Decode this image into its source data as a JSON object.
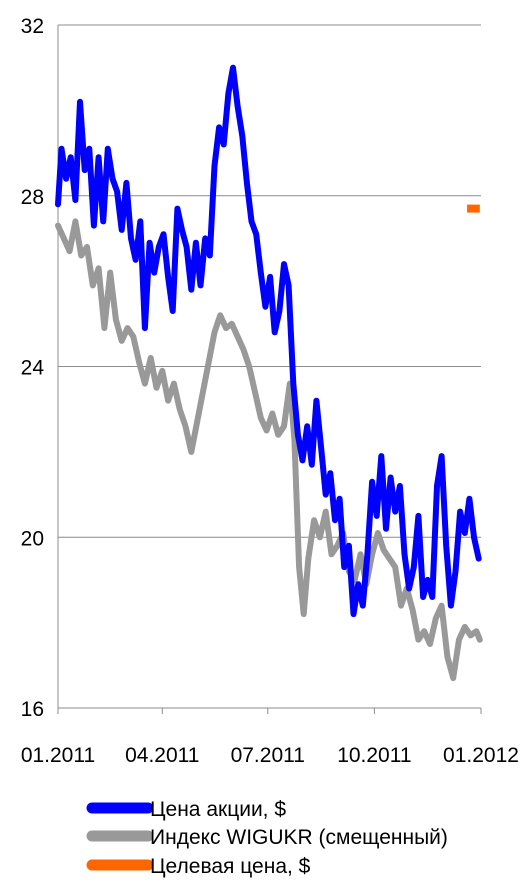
{
  "chart_data": {
    "type": "line",
    "title": "",
    "xlabel": "",
    "ylabel": "",
    "ylim": [
      16,
      32
    ],
    "yticks": [
      "16",
      "20",
      "24",
      "28",
      "32"
    ],
    "xlim": [
      "2011-01-01",
      "2012-01-01"
    ],
    "xticks": [
      "01.2011",
      "04.2011",
      "07.2011",
      "10.2011",
      "01.2012"
    ],
    "grid": "horizontal",
    "legend": "bottom",
    "series": [
      {
        "name": "Цена акции, $",
        "color": "#0000ff",
        "points": [
          [
            "2011-01-01",
            27.8
          ],
          [
            "2011-01-04",
            29.1
          ],
          [
            "2011-01-08",
            28.4
          ],
          [
            "2011-01-12",
            28.9
          ],
          [
            "2011-01-16",
            27.9
          ],
          [
            "2011-01-20",
            30.2
          ],
          [
            "2011-01-24",
            28.6
          ],
          [
            "2011-01-28",
            29.1
          ],
          [
            "2011-02-01",
            27.3
          ],
          [
            "2011-02-05",
            28.9
          ],
          [
            "2011-02-09",
            27.4
          ],
          [
            "2011-02-13",
            29.1
          ],
          [
            "2011-02-17",
            28.4
          ],
          [
            "2011-02-21",
            28.1
          ],
          [
            "2011-02-25",
            27.2
          ],
          [
            "2011-03-01",
            28.3
          ],
          [
            "2011-03-05",
            27.0
          ],
          [
            "2011-03-09",
            26.5
          ],
          [
            "2011-03-13",
            27.4
          ],
          [
            "2011-03-17",
            24.9
          ],
          [
            "2011-03-21",
            26.9
          ],
          [
            "2011-03-25",
            26.2
          ],
          [
            "2011-03-29",
            26.8
          ],
          [
            "2011-04-02",
            27.1
          ],
          [
            "2011-04-06",
            26.1
          ],
          [
            "2011-04-10",
            25.3
          ],
          [
            "2011-04-14",
            27.7
          ],
          [
            "2011-04-18",
            27.2
          ],
          [
            "2011-04-22",
            26.8
          ],
          [
            "2011-04-26",
            25.8
          ],
          [
            "2011-04-30",
            26.9
          ],
          [
            "2011-05-04",
            25.9
          ],
          [
            "2011-05-08",
            27.0
          ],
          [
            "2011-05-12",
            26.6
          ],
          [
            "2011-05-16",
            28.7
          ],
          [
            "2011-05-20",
            29.6
          ],
          [
            "2011-05-24",
            29.2
          ],
          [
            "2011-05-28",
            30.4
          ],
          [
            "2011-06-01",
            31.0
          ],
          [
            "2011-06-05",
            30.1
          ],
          [
            "2011-06-09",
            29.4
          ],
          [
            "2011-06-13",
            28.3
          ],
          [
            "2011-06-17",
            27.4
          ],
          [
            "2011-06-21",
            27.1
          ],
          [
            "2011-06-25",
            26.2
          ],
          [
            "2011-06-29",
            25.4
          ],
          [
            "2011-07-03",
            26.1
          ],
          [
            "2011-07-07",
            24.8
          ],
          [
            "2011-07-11",
            25.3
          ],
          [
            "2011-07-15",
            26.4
          ],
          [
            "2011-07-19",
            25.9
          ],
          [
            "2011-07-23",
            23.6
          ],
          [
            "2011-07-27",
            22.4
          ],
          [
            "2011-07-31",
            21.8
          ],
          [
            "2011-08-04",
            22.6
          ],
          [
            "2011-08-08",
            21.7
          ],
          [
            "2011-08-12",
            23.2
          ],
          [
            "2011-08-16",
            22.1
          ],
          [
            "2011-08-20",
            21.0
          ],
          [
            "2011-08-24",
            21.5
          ],
          [
            "2011-08-28",
            20.4
          ],
          [
            "2011-09-01",
            20.9
          ],
          [
            "2011-09-05",
            19.3
          ],
          [
            "2011-09-09",
            19.8
          ],
          [
            "2011-09-13",
            18.2
          ],
          [
            "2011-09-17",
            18.9
          ],
          [
            "2011-09-21",
            18.4
          ],
          [
            "2011-09-25",
            19.6
          ],
          [
            "2011-09-29",
            21.3
          ],
          [
            "2011-10-03",
            20.5
          ],
          [
            "2011-10-07",
            21.9
          ],
          [
            "2011-10-11",
            20.2
          ],
          [
            "2011-10-15",
            21.4
          ],
          [
            "2011-10-19",
            20.6
          ],
          [
            "2011-10-23",
            21.2
          ],
          [
            "2011-10-27",
            19.6
          ],
          [
            "2011-10-31",
            18.8
          ],
          [
            "2011-11-04",
            19.3
          ],
          [
            "2011-11-08",
            20.5
          ],
          [
            "2011-11-12",
            18.6
          ],
          [
            "2011-11-16",
            19.0
          ],
          [
            "2011-11-20",
            18.6
          ],
          [
            "2011-11-24",
            21.2
          ],
          [
            "2011-11-28",
            21.9
          ],
          [
            "2011-12-02",
            19.8
          ],
          [
            "2011-12-06",
            18.4
          ],
          [
            "2011-12-10",
            19.2
          ],
          [
            "2011-12-14",
            20.6
          ],
          [
            "2011-12-18",
            20.1
          ],
          [
            "2011-12-22",
            20.9
          ],
          [
            "2011-12-26",
            20.0
          ],
          [
            "2011-12-30",
            19.5
          ]
        ]
      },
      {
        "name": "Индекс WIGUKR (смещенный)",
        "color": "#999999",
        "points": [
          [
            "2011-01-01",
            27.3
          ],
          [
            "2011-01-06",
            27.0
          ],
          [
            "2011-01-11",
            26.7
          ],
          [
            "2011-01-16",
            27.4
          ],
          [
            "2011-01-21",
            26.6
          ],
          [
            "2011-01-26",
            26.8
          ],
          [
            "2011-01-31",
            25.9
          ],
          [
            "2011-02-05",
            26.3
          ],
          [
            "2011-02-10",
            24.9
          ],
          [
            "2011-02-15",
            26.2
          ],
          [
            "2011-02-20",
            25.1
          ],
          [
            "2011-02-25",
            24.6
          ],
          [
            "2011-03-02",
            24.9
          ],
          [
            "2011-03-07",
            24.7
          ],
          [
            "2011-03-12",
            24.1
          ],
          [
            "2011-03-17",
            23.6
          ],
          [
            "2011-03-22",
            24.2
          ],
          [
            "2011-03-27",
            23.5
          ],
          [
            "2011-04-01",
            23.9
          ],
          [
            "2011-04-06",
            23.2
          ],
          [
            "2011-04-11",
            23.6
          ],
          [
            "2011-04-16",
            23.0
          ],
          [
            "2011-04-21",
            22.6
          ],
          [
            "2011-04-26",
            22.0
          ],
          [
            "2011-05-01",
            22.7
          ],
          [
            "2011-05-06",
            23.4
          ],
          [
            "2011-05-11",
            24.1
          ],
          [
            "2011-05-16",
            24.8
          ],
          [
            "2011-05-21",
            25.2
          ],
          [
            "2011-05-26",
            24.9
          ],
          [
            "2011-05-31",
            25.0
          ],
          [
            "2011-06-05",
            24.7
          ],
          [
            "2011-06-10",
            24.4
          ],
          [
            "2011-06-15",
            24.0
          ],
          [
            "2011-06-20",
            23.4
          ],
          [
            "2011-06-25",
            22.8
          ],
          [
            "2011-06-30",
            22.5
          ],
          [
            "2011-07-05",
            22.9
          ],
          [
            "2011-07-10",
            22.4
          ],
          [
            "2011-07-15",
            22.6
          ],
          [
            "2011-07-20",
            23.6
          ],
          [
            "2011-07-24",
            22.3
          ],
          [
            "2011-07-28",
            19.3
          ],
          [
            "2011-08-01",
            18.2
          ],
          [
            "2011-08-05",
            19.5
          ],
          [
            "2011-08-10",
            20.4
          ],
          [
            "2011-08-15",
            20.0
          ],
          [
            "2011-08-20",
            20.6
          ],
          [
            "2011-08-25",
            19.6
          ],
          [
            "2011-08-30",
            19.8
          ],
          [
            "2011-09-04",
            20.1
          ],
          [
            "2011-09-09",
            19.2
          ],
          [
            "2011-09-14",
            19.0
          ],
          [
            "2011-09-19",
            19.6
          ],
          [
            "2011-09-24",
            18.9
          ],
          [
            "2011-09-29",
            19.6
          ],
          [
            "2011-10-04",
            20.1
          ],
          [
            "2011-10-09",
            19.7
          ],
          [
            "2011-10-14",
            19.5
          ],
          [
            "2011-10-19",
            19.3
          ],
          [
            "2011-10-24",
            18.4
          ],
          [
            "2011-10-29",
            18.8
          ],
          [
            "2011-11-03",
            18.3
          ],
          [
            "2011-11-08",
            17.6
          ],
          [
            "2011-11-13",
            17.8
          ],
          [
            "2011-11-18",
            17.5
          ],
          [
            "2011-11-23",
            18.1
          ],
          [
            "2011-11-28",
            18.4
          ],
          [
            "2011-12-03",
            17.2
          ],
          [
            "2011-12-08",
            16.7
          ],
          [
            "2011-12-13",
            17.6
          ],
          [
            "2011-12-18",
            17.9
          ],
          [
            "2011-12-23",
            17.7
          ],
          [
            "2011-12-28",
            17.8
          ],
          [
            "2011-12-31",
            17.6
          ]
        ]
      },
      {
        "name": "Целевая цена, $",
        "color": "#ff6600",
        "points": [
          [
            "2011-12-20",
            27.7
          ],
          [
            "2011-12-31",
            27.7
          ]
        ]
      }
    ]
  }
}
